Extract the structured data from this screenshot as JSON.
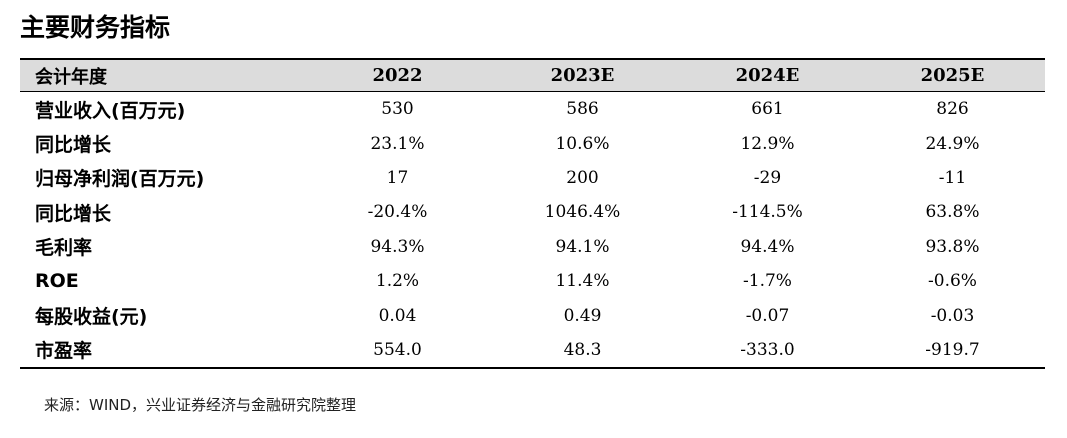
{
  "title": "主要财务指标",
  "table": {
    "headers": [
      "会计年度",
      "2022",
      "2023E",
      "2024E",
      "2025E"
    ],
    "rows": [
      {
        "label": "营业收入(百万元)",
        "values": [
          "530",
          "586",
          "661",
          "826"
        ]
      },
      {
        "label": "同比增长",
        "values": [
          "23.1%",
          "10.6%",
          "12.9%",
          "24.9%"
        ]
      },
      {
        "label": "归母净利润(百万元)",
        "values": [
          "17",
          "200",
          "-29",
          "-11"
        ]
      },
      {
        "label": "同比增长",
        "values": [
          "-20.4%",
          "1046.4%",
          "-114.5%",
          "63.8%"
        ]
      },
      {
        "label": "毛利率",
        "values": [
          "94.3%",
          "94.1%",
          "94.4%",
          "93.8%"
        ]
      },
      {
        "label": "ROE",
        "values": [
          "1.2%",
          "11.4%",
          "-1.7%",
          "-0.6%"
        ]
      },
      {
        "label": "每股收益(元)",
        "values": [
          "0.04",
          "0.49",
          "-0.07",
          "-0.03"
        ]
      },
      {
        "label": "市盈率",
        "values": [
          "554.0",
          "48.3",
          "-333.0",
          "-919.7"
        ]
      }
    ]
  },
  "source": "来源：WIND，兴业证券经济与金融研究院整理"
}
